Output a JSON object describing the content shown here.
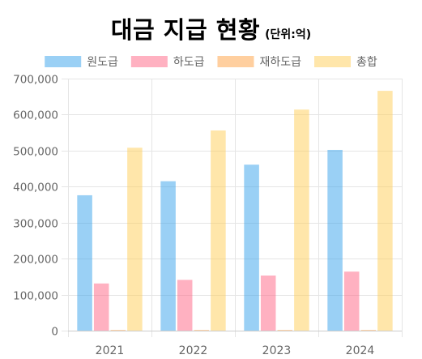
{
  "chart_data": {
    "type": "bar",
    "title": "대금 지급 현황",
    "subtitle": "(단위:억)",
    "categories": [
      "2021",
      "2022",
      "2023",
      "2024"
    ],
    "series": [
      {
        "name": "원도급",
        "color": "#36A2EB",
        "values": [
          376000,
          415000,
          461000,
          502000
        ]
      },
      {
        "name": "하도급",
        "color": "#FF6384",
        "values": [
          131000,
          141000,
          153000,
          164000
        ]
      },
      {
        "name": "재하도급",
        "color": "#FF9F40",
        "values": [
          2000,
          2000,
          2000,
          2000
        ]
      },
      {
        "name": "총합",
        "color": "#FFCD56",
        "values": [
          508000,
          556000,
          614000,
          666000
        ]
      }
    ],
    "ylim": [
      0,
      700000
    ],
    "yticks": [
      "0",
      "100,000",
      "200,000",
      "300,000",
      "400,000",
      "500,000",
      "600,000",
      "700,000"
    ],
    "legend_position": "top",
    "grid": true,
    "xlabel": "",
    "ylabel": ""
  }
}
